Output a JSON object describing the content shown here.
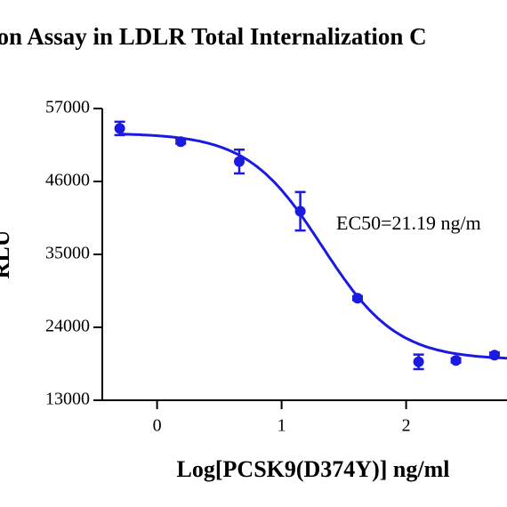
{
  "chart_data": {
    "type": "scatter",
    "title": "tion Assay in LDLR Total Internalization C",
    "x_label": "Log[PCSK9(D374Y)] ng/ml",
    "y_label": "RLU",
    "annotation": "EC50=21.19 ng/m",
    "color": "#1a1ae0",
    "xlim": [
      -0.44,
      2.81
    ],
    "ylim": [
      13000,
      57000
    ],
    "xticks": [
      0,
      1,
      2
    ],
    "yticks": [
      13000,
      24000,
      35000,
      46000,
      57000
    ],
    "series": [
      {
        "name": "RLU",
        "color": "#1a1ae0",
        "x": [
          -0.3,
          0.19,
          0.66,
          1.15,
          1.61,
          2.1,
          2.4,
          2.71
        ],
        "values": [
          54000,
          52000,
          49000,
          41500,
          28400,
          18800,
          19000,
          19800
        ],
        "errors": [
          1000,
          300,
          1800,
          2900,
          300,
          1100,
          300,
          400
        ]
      }
    ],
    "fit": {
      "top": 53300,
      "bottom": 19100,
      "logec50": 1.326,
      "hill": 1.45
    }
  }
}
